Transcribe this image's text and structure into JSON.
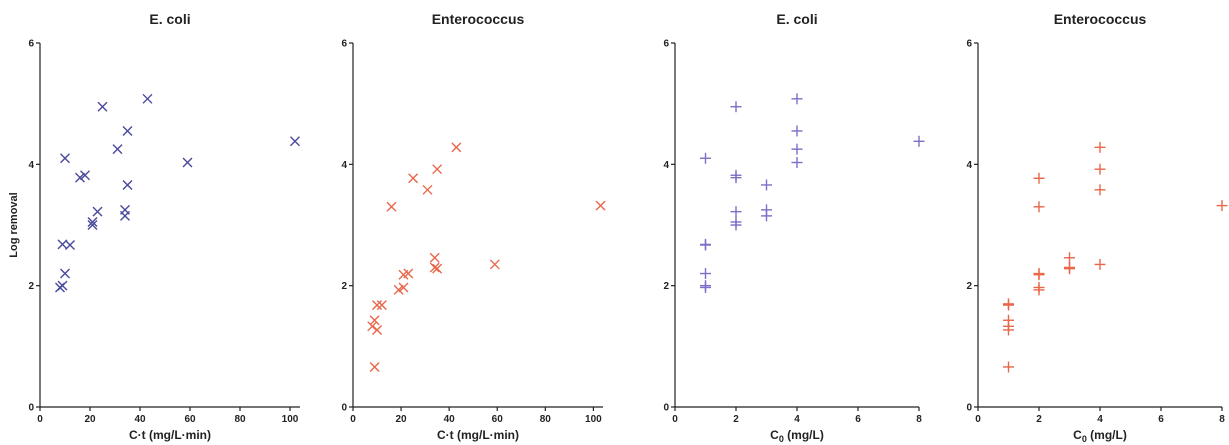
{
  "colors": {
    "purple": "#4a4a9c",
    "orange": "#e8674a",
    "lavender": "#7a70c8",
    "axis": "#222222"
  },
  "chart_data": [
    {
      "type": "scatter",
      "title": "E. coli",
      "xlabel": "C·t (mg/L·min)",
      "ylabel": "Log removal",
      "xlim": [
        0,
        104
      ],
      "ylim": [
        0,
        6
      ],
      "xticks": [
        "0",
        "20",
        "40",
        "60",
        "80",
        "100"
      ],
      "xtick_values": [
        0,
        20,
        40,
        60,
        80,
        100
      ],
      "yticks": [
        "0",
        "2",
        "4",
        "6"
      ],
      "ytick_values": [
        0,
        2,
        4,
        6
      ],
      "marker": "x",
      "color": "#4a4a9c",
      "points": [
        [
          8,
          1.97
        ],
        [
          9,
          2.0
        ],
        [
          9,
          2.68
        ],
        [
          10,
          2.2
        ],
        [
          10,
          4.1
        ],
        [
          12,
          2.67
        ],
        [
          16,
          3.78
        ],
        [
          18,
          3.82
        ],
        [
          21,
          3.0
        ],
        [
          21,
          3.05
        ],
        [
          23,
          3.22
        ],
        [
          25,
          4.95
        ],
        [
          31,
          4.25
        ],
        [
          34,
          3.15
        ],
        [
          34,
          3.25
        ],
        [
          35,
          4.55
        ],
        [
          35,
          3.66
        ],
        [
          43,
          5.08
        ],
        [
          59,
          4.03
        ],
        [
          102,
          4.38
        ]
      ]
    },
    {
      "type": "scatter",
      "title": "Enterococcus",
      "xlabel": "C·t (mg/L·min)",
      "ylabel": "",
      "xlim": [
        0,
        104
      ],
      "ylim": [
        0,
        6
      ],
      "xticks": [
        "0",
        "20",
        "40",
        "60",
        "80",
        "100"
      ],
      "xtick_values": [
        0,
        20,
        40,
        60,
        80,
        100
      ],
      "yticks": [
        "0",
        "2",
        "4",
        "6"
      ],
      "ytick_values": [
        0,
        2,
        4,
        6
      ],
      "marker": "x",
      "color": "#e8674a",
      "points": [
        [
          8,
          1.33
        ],
        [
          9,
          1.43
        ],
        [
          9,
          0.66
        ],
        [
          10,
          1.27
        ],
        [
          10,
          1.68
        ],
        [
          12,
          1.68
        ],
        [
          16,
          3.3
        ],
        [
          19,
          1.93
        ],
        [
          21,
          1.97
        ],
        [
          21,
          2.18
        ],
        [
          23,
          2.2
        ],
        [
          25,
          3.77
        ],
        [
          31,
          3.58
        ],
        [
          34,
          2.3
        ],
        [
          34,
          2.46
        ],
        [
          35,
          2.28
        ],
        [
          35,
          3.92
        ],
        [
          43,
          4.28
        ],
        [
          59,
          2.35
        ],
        [
          103,
          3.32
        ]
      ]
    },
    {
      "type": "scatter",
      "title": "E. coli",
      "xlabel": "C",
      "xlabel_sub": "0",
      "xlabel_rest": " (mg/L)",
      "ylabel": "",
      "xlim": [
        0,
        8
      ],
      "ylim": [
        0,
        6
      ],
      "xticks": [
        "0",
        "2",
        "4",
        "6",
        "8"
      ],
      "xtick_values": [
        0,
        2,
        4,
        6,
        8
      ],
      "yticks": [
        "0",
        "2",
        "4",
        "6"
      ],
      "ytick_values": [
        0,
        2,
        4,
        6
      ],
      "marker": "+",
      "color": "#7a70c8",
      "points": [
        [
          1,
          1.97
        ],
        [
          1,
          2.0
        ],
        [
          1,
          2.2
        ],
        [
          1,
          2.67
        ],
        [
          1,
          2.68
        ],
        [
          1,
          4.1
        ],
        [
          2,
          3.0
        ],
        [
          2,
          3.05
        ],
        [
          2,
          3.22
        ],
        [
          2,
          3.78
        ],
        [
          2,
          3.82
        ],
        [
          2,
          4.95
        ],
        [
          3,
          3.15
        ],
        [
          3,
          3.25
        ],
        [
          3,
          3.66
        ],
        [
          4,
          4.03
        ],
        [
          4,
          4.25
        ],
        [
          4,
          4.55
        ],
        [
          4,
          5.08
        ],
        [
          8,
          4.38
        ]
      ]
    },
    {
      "type": "scatter",
      "title": "Enterococcus",
      "xlabel": "C",
      "xlabel_sub": "0",
      "xlabel_rest": " (mg/L)",
      "ylabel": "",
      "xlim": [
        0,
        8
      ],
      "ylim": [
        0,
        6
      ],
      "xticks": [
        "0",
        "2",
        "4",
        "6",
        "8"
      ],
      "xtick_values": [
        0,
        2,
        4,
        6,
        8
      ],
      "yticks": [
        "0",
        "2",
        "4",
        "6"
      ],
      "ytick_values": [
        0,
        2,
        4,
        6
      ],
      "marker": "+",
      "color": "#e8674a",
      "points": [
        [
          1,
          0.66
        ],
        [
          1,
          1.27
        ],
        [
          1,
          1.33
        ],
        [
          1,
          1.43
        ],
        [
          1,
          1.68
        ],
        [
          1,
          1.7
        ],
        [
          2,
          1.93
        ],
        [
          2,
          1.97
        ],
        [
          2,
          2.18
        ],
        [
          2,
          2.2
        ],
        [
          2,
          3.3
        ],
        [
          2,
          3.77
        ],
        [
          3,
          2.28
        ],
        [
          3,
          2.3
        ],
        [
          3,
          2.46
        ],
        [
          4,
          2.35
        ],
        [
          4,
          3.58
        ],
        [
          4,
          3.92
        ],
        [
          4,
          4.28
        ],
        [
          8,
          3.32
        ]
      ]
    }
  ]
}
